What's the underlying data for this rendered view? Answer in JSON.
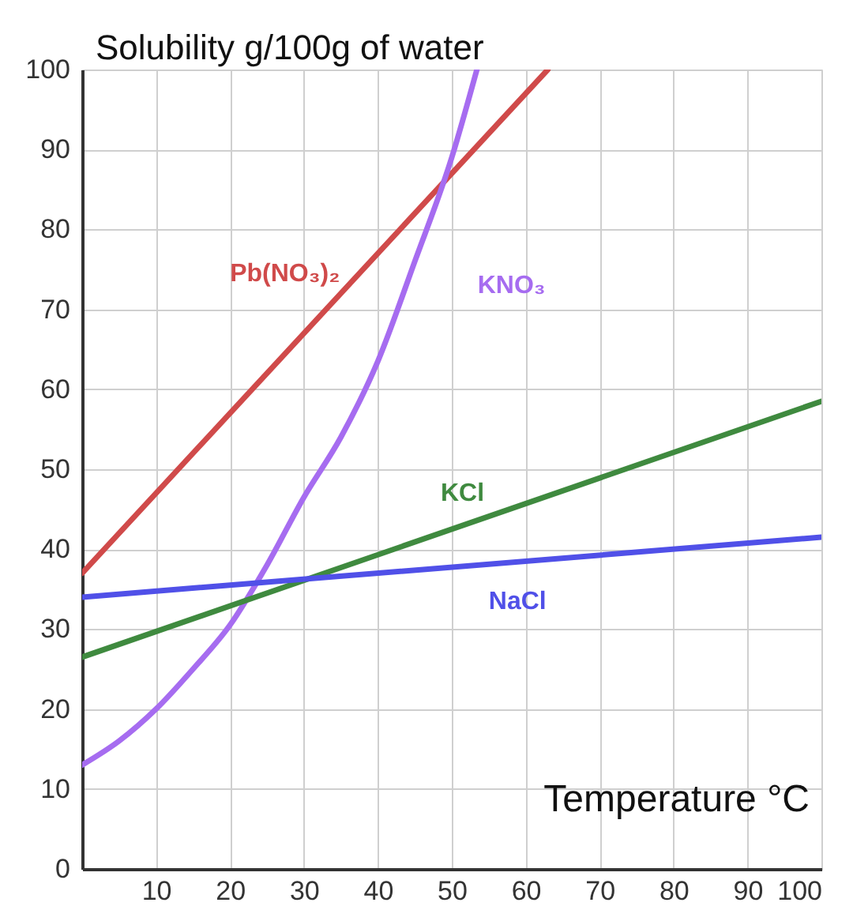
{
  "chart_data": {
    "type": "line",
    "xlabel": "Temperature °C",
    "ylabel": "Solubility g/100g of water",
    "xlim": [
      0,
      100
    ],
    "ylim": [
      0,
      100
    ],
    "xticks": [
      10,
      20,
      30,
      40,
      50,
      60,
      70,
      80,
      90,
      100
    ],
    "yticks": [
      0,
      10,
      20,
      30,
      40,
      50,
      60,
      70,
      80,
      90,
      100
    ],
    "grid": true,
    "legend": false,
    "marker": "none",
    "line_style": "solid",
    "series": [
      {
        "name": "Pb(NO₃)₂",
        "color": "#d04a4a",
        "x": [
          0,
          63
        ],
        "values": [
          37,
          100
        ]
      },
      {
        "name": "KNO₃",
        "color": "#a66cf0",
        "x": [
          0,
          5,
          10,
          15,
          20,
          25,
          30,
          35,
          40,
          45,
          50,
          53.4
        ],
        "values": [
          13,
          16,
          20,
          25,
          30.5,
          38,
          46.5,
          54,
          63.5,
          76,
          89,
          100
        ]
      },
      {
        "name": "KCl",
        "color": "#3f8a3f",
        "x": [
          0,
          100
        ],
        "values": [
          26.5,
          58.5
        ]
      },
      {
        "name": "NaCl",
        "color": "#5050e8",
        "x": [
          0,
          100
        ],
        "values": [
          34,
          41.5
        ]
      }
    ]
  }
}
